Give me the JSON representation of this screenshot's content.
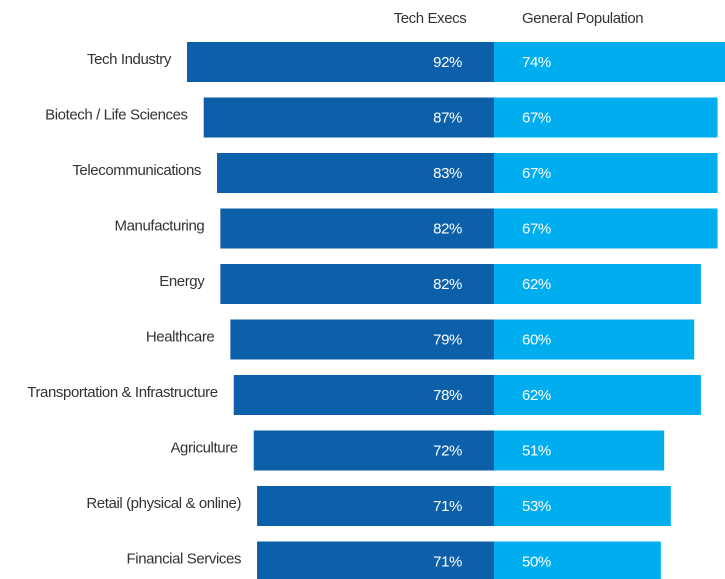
{
  "chart_data": {
    "type": "bar",
    "categories": [
      "Tech Industry",
      "Biotech / Life Sciences",
      "Telecommunications",
      "Manufacturing",
      "Energy",
      "Healthcare",
      "Transportation & Infrastructure",
      "Agriculture",
      "Retail (physical & online)",
      "Financial Services"
    ],
    "series": [
      {
        "name": "Tech Execs",
        "color": "#0c5fa9",
        "values": [
          92,
          87,
          83,
          82,
          82,
          79,
          78,
          72,
          71,
          71
        ],
        "value_labels": [
          "92%",
          "87%",
          "83%",
          "82%",
          "82%",
          "79%",
          "78%",
          "72%",
          "71%",
          "71%"
        ]
      },
      {
        "name": "General Population",
        "color": "#00aeef",
        "values": [
          74,
          67,
          67,
          67,
          62,
          60,
          62,
          51,
          53,
          50
        ],
        "value_labels": [
          "74%",
          "67%",
          "67%",
          "67%",
          "62%",
          "60%",
          "62%",
          "51%",
          "53%",
          "50%"
        ]
      }
    ]
  }
}
